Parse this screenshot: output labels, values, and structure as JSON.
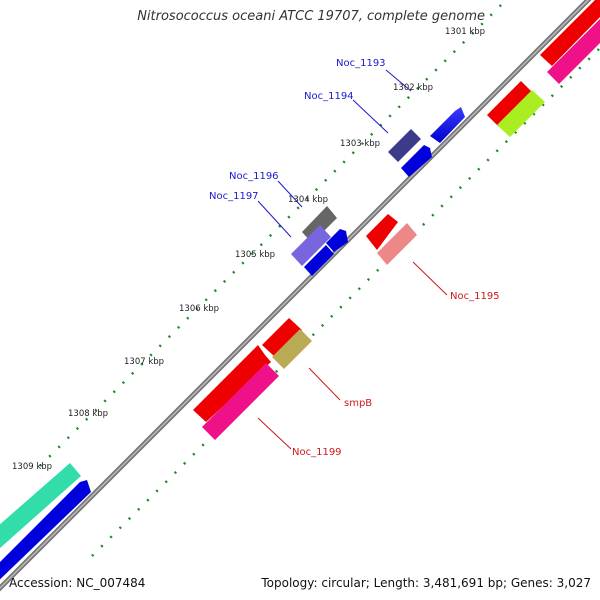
{
  "title": "Nitrosococcus oceani ATCC 19707, complete genome",
  "accession_text": "Accession: NC_007484",
  "summary_text": "Topology: circular; Length: 3,481,691 bp; Genes: 3,027",
  "tick_labels": [
    "1301 kbp",
    "1302 kbp",
    "1303 kbp",
    "1304 kbp",
    "1305 kbp",
    "1306 kbp",
    "1307 kbp",
    "1308 kbp",
    "1309 kbp"
  ],
  "gene_labels": [
    {
      "name": "Noc_1193",
      "color": "#1a1acc"
    },
    {
      "name": "Noc_1194",
      "color": "#1a1acc"
    },
    {
      "name": "Noc_1196",
      "color": "#1a1acc"
    },
    {
      "name": "Noc_1197",
      "color": "#1a1acc"
    },
    {
      "name": "Noc_1195",
      "color": "#cc1a1a"
    },
    {
      "name": "smpB",
      "color": "#cc1a1a"
    },
    {
      "name": "Noc_1199",
      "color": "#cc1a1a"
    }
  ],
  "colors": {
    "backbone": "#888888",
    "dots": "#228822",
    "forward_gene": "#0000ee",
    "reverse_gene": "#ee0000"
  }
}
